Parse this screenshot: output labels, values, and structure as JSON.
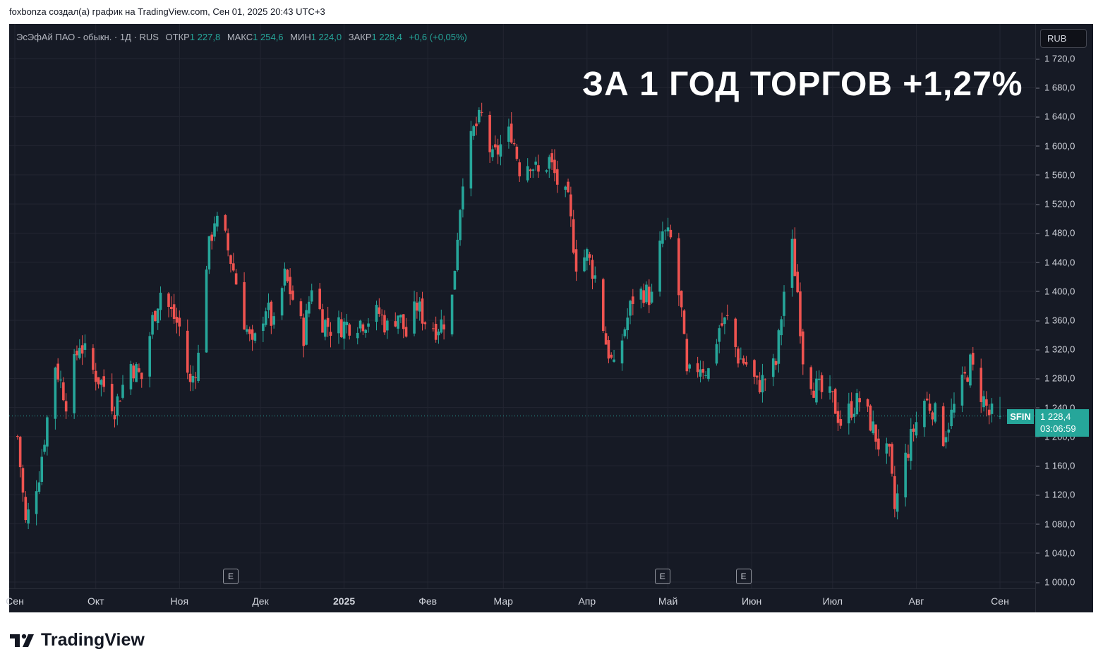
{
  "caption": "foxbonza создал(а) график на TradingView.com, Сен 01, 2025 20:43 UTC+3",
  "legend": {
    "title": "ЭсЭфАй ПАО - обыкн. · 1Д · RUS",
    "open_label": "ОТКР",
    "open": "1 227,8",
    "high_label": "МАКС",
    "high": "1 254,6",
    "low_label": "МИН",
    "low": "1 224,0",
    "close_label": "ЗАКР",
    "close": "1 228,4",
    "change": "+0,6 (+0,05%)"
  },
  "headline": "ЗА 1 ГОД ТОРГОВ +1,27%",
  "currency": "RUB",
  "ticker": "SFIN",
  "last_price": "1 228,4",
  "countdown": "03:06:59",
  "earnings_marker": "E",
  "brand": "TradingView",
  "colors": {
    "up": "#26a69a",
    "down": "#ef5350",
    "background": "#161a25",
    "grid": "#232632"
  },
  "chart_data": {
    "type": "candlestick",
    "title": "ЭсЭфАй ПАО - обыкн. · 1Д · RUS",
    "interval": "1Д",
    "ylim": [
      1000,
      1720
    ],
    "y_ticks": [
      "1 720,0",
      "1 680,0",
      "1 640,0",
      "1 600,0",
      "1 560,0",
      "1 520,0",
      "1 480,0",
      "1 440,0",
      "1 400,0",
      "1 360,0",
      "1 320,0",
      "1 280,0",
      "1 240,0",
      "1 200,0",
      "1 160,0",
      "1 120,0",
      "1 080,0",
      "1 040,0",
      "1 000,0"
    ],
    "x_ticks": [
      "Сен",
      "Окт",
      "Ноя",
      "Дек",
      "2025",
      "Фев",
      "Мар",
      "Апр",
      "Май",
      "Июн",
      "Июл",
      "Авг",
      "Сен"
    ],
    "x_tick_dates": [
      "2024-09-01",
      "2024-10-01",
      "2024-11-01",
      "2024-12-01",
      "2025-01-01",
      "2025-02-01",
      "2025-03-01",
      "2025-04-01",
      "2025-05-01",
      "2025-06-01",
      "2025-07-01",
      "2025-08-01",
      "2025-09-01"
    ],
    "last_close": 1228.4,
    "earnings_dates": [
      "2024-11-20",
      "2025-04-29",
      "2025-05-29"
    ],
    "close_path": [
      [
        "2024-09-02",
        1200
      ],
      [
        "2024-09-05",
        1080
      ],
      [
        "2024-09-10",
        1150
      ],
      [
        "2024-09-16",
        1300
      ],
      [
        "2024-09-20",
        1250
      ],
      [
        "2024-09-25",
        1330
      ],
      [
        "2024-09-30",
        1290
      ],
      [
        "2024-10-04",
        1270
      ],
      [
        "2024-10-08",
        1240
      ],
      [
        "2024-10-14",
        1300
      ],
      [
        "2024-10-18",
        1280
      ],
      [
        "2024-10-22",
        1360
      ],
      [
        "2024-10-25",
        1400
      ],
      [
        "2024-10-29",
        1370
      ],
      [
        "2024-11-01",
        1350
      ],
      [
        "2024-11-05",
        1270
      ],
      [
        "2024-11-08",
        1310
      ],
      [
        "2024-11-11",
        1440
      ],
      [
        "2024-11-14",
        1500
      ],
      [
        "2024-11-18",
        1470
      ],
      [
        "2024-11-21",
        1430
      ],
      [
        "2024-11-25",
        1360
      ],
      [
        "2024-11-28",
        1320
      ],
      [
        "2024-12-03",
        1380
      ],
      [
        "2024-12-06",
        1350
      ],
      [
        "2024-12-10",
        1420
      ],
      [
        "2024-12-13",
        1390
      ],
      [
        "2024-12-17",
        1340
      ],
      [
        "2024-12-20",
        1410
      ],
      [
        "2024-12-24",
        1360
      ],
      [
        "2024-12-27",
        1350
      ],
      [
        "2025-01-09",
        1360
      ],
      [
        "2025-01-14",
        1370
      ],
      [
        "2025-01-17",
        1350
      ],
      [
        "2025-01-21",
        1370
      ],
      [
        "2025-01-24",
        1340
      ],
      [
        "2025-01-28",
        1380
      ],
      [
        "2025-01-31",
        1360
      ],
      [
        "2025-02-04",
        1350
      ],
      [
        "2025-02-07",
        1360
      ],
      [
        "2025-02-10",
        1390
      ],
      [
        "2025-02-12",
        1480
      ],
      [
        "2025-02-14",
        1560
      ],
      [
        "2025-02-18",
        1620
      ],
      [
        "2025-02-21",
        1640
      ],
      [
        "2025-02-25",
        1580
      ],
      [
        "2025-02-28",
        1600
      ],
      [
        "2025-03-04",
        1620
      ],
      [
        "2025-03-07",
        1570
      ],
      [
        "2025-03-11",
        1580
      ],
      [
        "2025-03-14",
        1560
      ],
      [
        "2025-03-18",
        1580
      ],
      [
        "2025-03-21",
        1550
      ],
      [
        "2025-03-25",
        1520
      ],
      [
        "2025-03-28",
        1440
      ],
      [
        "2025-04-01",
        1450
      ],
      [
        "2025-04-04",
        1420
      ],
      [
        "2025-04-08",
        1330
      ],
      [
        "2025-04-11",
        1290
      ],
      [
        "2025-04-15",
        1350
      ],
      [
        "2025-04-18",
        1390
      ],
      [
        "2025-04-22",
        1400
      ],
      [
        "2025-04-25",
        1390
      ],
      [
        "2025-04-29",
        1480
      ],
      [
        "2025-05-02",
        1470
      ],
      [
        "2025-05-06",
        1370
      ],
      [
        "2025-05-08",
        1280
      ],
      [
        "2025-05-13",
        1300
      ],
      [
        "2025-05-16",
        1290
      ],
      [
        "2025-05-20",
        1350
      ],
      [
        "2025-05-23",
        1360
      ],
      [
        "2025-05-27",
        1310
      ],
      [
        "2025-05-30",
        1300
      ],
      [
        "2025-06-03",
        1270
      ],
      [
        "2025-06-06",
        1280
      ],
      [
        "2025-06-10",
        1300
      ],
      [
        "2025-06-13",
        1400
      ],
      [
        "2025-06-16",
        1460
      ],
      [
        "2025-06-18",
        1400
      ],
      [
        "2025-06-20",
        1310
      ],
      [
        "2025-06-24",
        1270
      ],
      [
        "2025-06-27",
        1260
      ],
      [
        "2025-07-01",
        1250
      ],
      [
        "2025-07-04",
        1220
      ],
      [
        "2025-07-08",
        1240
      ],
      [
        "2025-07-11",
        1250
      ],
      [
        "2025-07-15",
        1220
      ],
      [
        "2025-07-18",
        1190
      ],
      [
        "2025-07-22",
        1170
      ],
      [
        "2025-07-24",
        1100
      ],
      [
        "2025-07-28",
        1170
      ],
      [
        "2025-07-31",
        1210
      ],
      [
        "2025-08-04",
        1250
      ],
      [
        "2025-08-07",
        1240
      ],
      [
        "2025-08-11",
        1200
      ],
      [
        "2025-08-14",
        1230
      ],
      [
        "2025-08-18",
        1270
      ],
      [
        "2025-08-21",
        1300
      ],
      [
        "2025-08-25",
        1260
      ],
      [
        "2025-08-28",
        1230
      ],
      [
        "2025-09-01",
        1228.4
      ]
    ]
  }
}
